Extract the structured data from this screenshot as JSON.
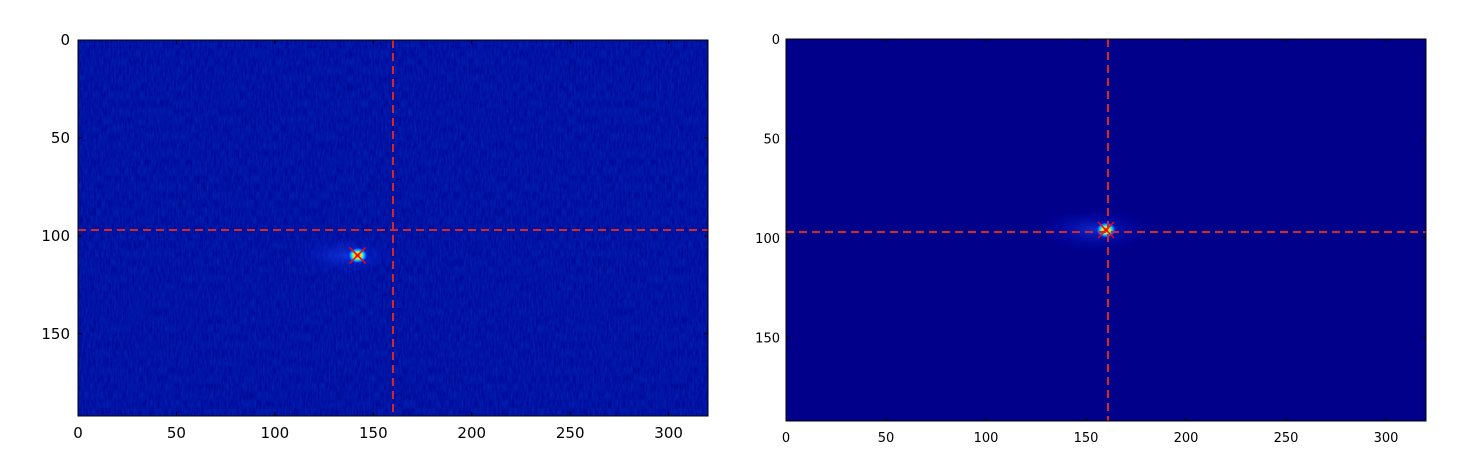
{
  "chart_data": [
    {
      "type": "heatmap",
      "colormap": "jet",
      "background_color": "#00008f",
      "xlim": [
        0,
        320
      ],
      "ylim": [
        192,
        0
      ],
      "x_ticks": [
        0,
        50,
        100,
        150,
        200,
        250,
        300
      ],
      "y_ticks": [
        0,
        50,
        100,
        150
      ],
      "x_tick_labels": [
        "0",
        "50",
        "100",
        "150",
        "200",
        "250",
        "300"
      ],
      "y_tick_labels": [
        "0",
        "50",
        "100",
        "150"
      ],
      "noise": "speckled",
      "crosshair": {
        "x": 160,
        "y": 97,
        "color": "#d62728",
        "style": "dashed"
      },
      "hotspot": {
        "x": 142,
        "y": 110,
        "marker": "x",
        "marker_color": "#ff0000"
      },
      "grid": false
    },
    {
      "type": "heatmap",
      "colormap": "jet",
      "background_color": "#00008b",
      "xlim": [
        0,
        320
      ],
      "ylim": [
        192,
        0
      ],
      "x_ticks": [
        0,
        50,
        100,
        150,
        200,
        250,
        300
      ],
      "y_ticks": [
        0,
        50,
        100,
        150
      ],
      "x_tick_labels": [
        "0",
        "50",
        "100",
        "150",
        "200",
        "250",
        "300"
      ],
      "y_tick_labels": [
        "0",
        "50",
        "100",
        "150"
      ],
      "noise": "smooth",
      "crosshair": {
        "x": 161,
        "y": 97,
        "color": "#d62728",
        "style": "dashed"
      },
      "hotspot": {
        "x": 160,
        "y": 96,
        "marker": "x",
        "marker_color": "#ff0000"
      },
      "grid": false
    }
  ]
}
